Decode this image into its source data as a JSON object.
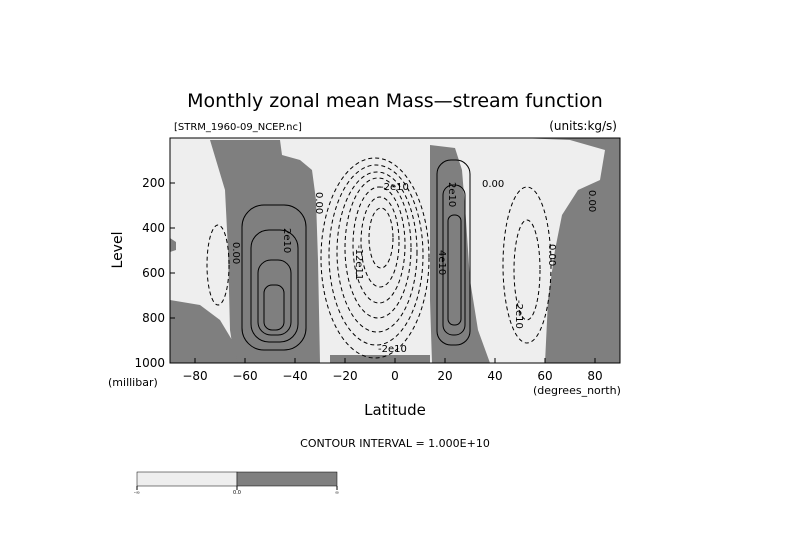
{
  "chart_data": {
    "type": "contour",
    "title": "Monthly zonal mean Mass—stream function",
    "file_label": "[STRM_1960-09_NCEP.nc]",
    "units_label": "(units:kg/s)",
    "xlabel": "Latitude",
    "x_unit": "(degrees_north)",
    "ylabel": "Level",
    "y_unit": "(millibar)",
    "xlim": [
      -90,
      90
    ],
    "ylim": [
      0,
      1000
    ],
    "y_inverted": true,
    "x_ticks": [
      -80,
      -60,
      -40,
      -20,
      0,
      20,
      40,
      60,
      80
    ],
    "y_ticks": [
      200,
      400,
      600,
      800,
      1000
    ],
    "contour_interval_text": "CONTOUR INTERVAL = 1.000E+10",
    "contour_labels": [
      "0.00",
      "2e10",
      "-2e10",
      "-12e11",
      "4e10",
      "-2e10",
      "0.00",
      "2e10",
      "0.00",
      "0.00",
      "0.00",
      "-2e10"
    ],
    "shading": {
      "negative_color": "#eeeeee",
      "positive_color": "#7f7f7f",
      "threshold": 0
    },
    "colorbar_labels": [
      "-∞",
      "0.0",
      "∞"
    ]
  }
}
